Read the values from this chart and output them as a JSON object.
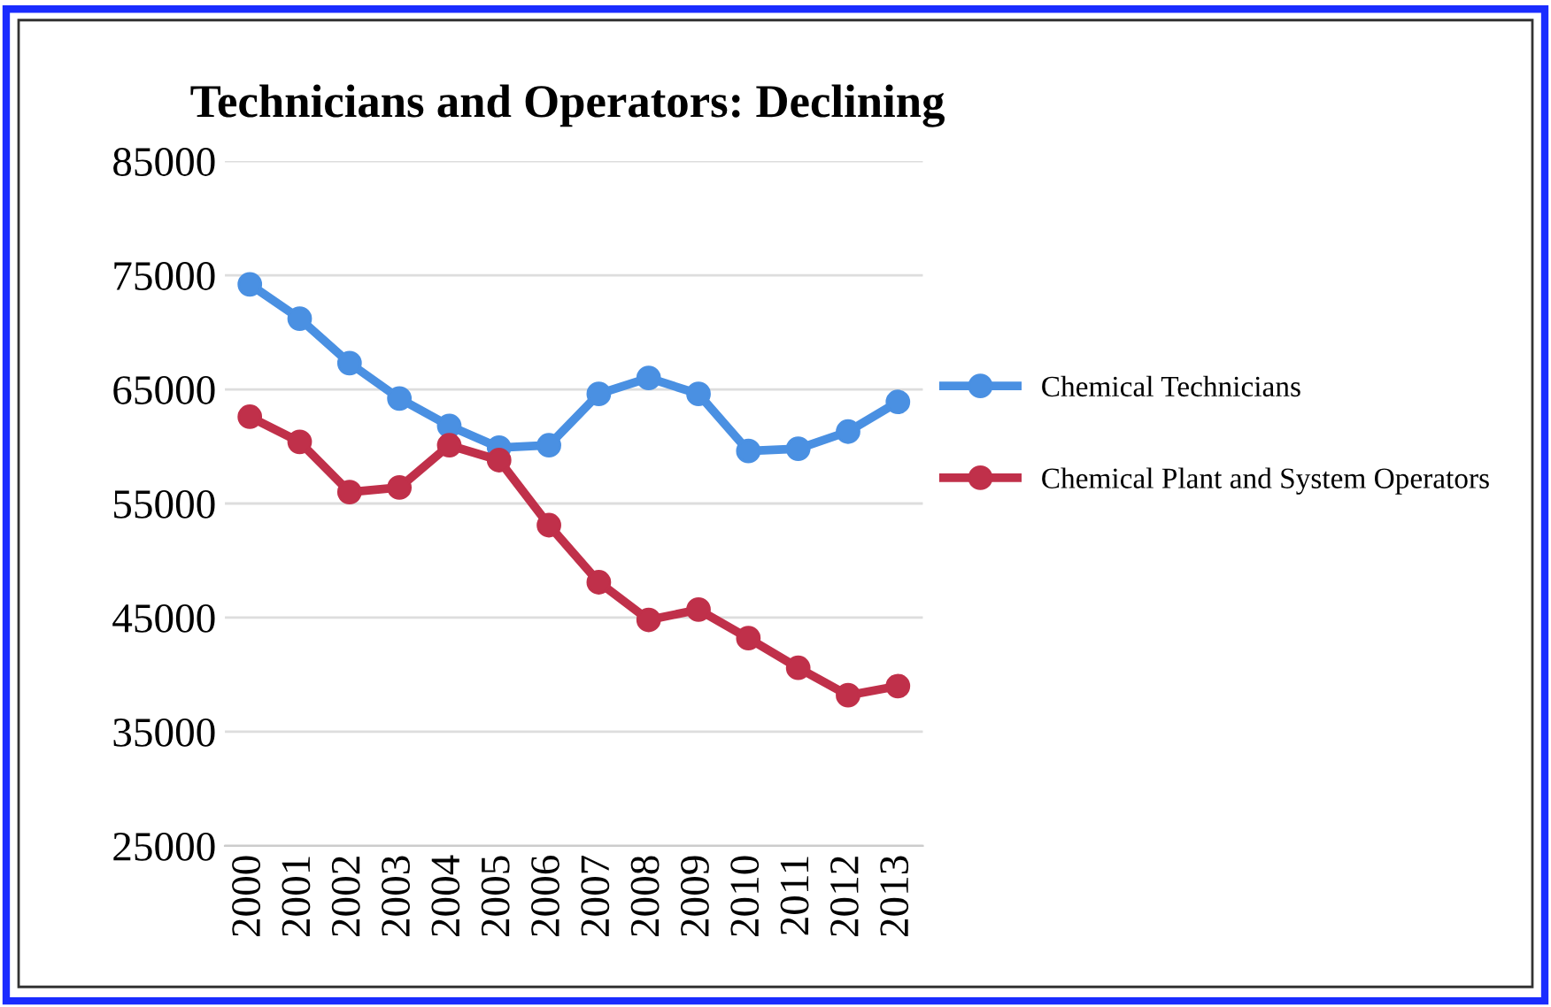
{
  "chart_data": {
    "type": "line",
    "title": "Technicians and Operators: Declining",
    "categories": [
      "2000",
      "2001",
      "2002",
      "2003",
      "2004",
      "2005",
      "2006",
      "2007",
      "2008",
      "2009",
      "2010",
      "2011",
      "2012",
      "2013"
    ],
    "series": [
      {
        "name": "Chemical Technicians",
        "color": "#4a90e2",
        "values": [
          74200,
          71200,
          67300,
          64200,
          61800,
          59900,
          60100,
          64600,
          66000,
          64600,
          59600,
          59800,
          61300,
          63900
        ]
      },
      {
        "name": "Chemical Plant and System Operators",
        "color": "#c0304a",
        "values": [
          62600,
          60400,
          56000,
          56400,
          60100,
          58800,
          53100,
          48100,
          44800,
          45700,
          43200,
          40600,
          38200,
          39000
        ]
      }
    ],
    "ylim": [
      25000,
      85000
    ],
    "yticks": [
      25000,
      35000,
      45000,
      55000,
      65000,
      75000,
      85000
    ],
    "grid": "y",
    "legend": "right",
    "marker": "circle",
    "line_style": "solid"
  }
}
